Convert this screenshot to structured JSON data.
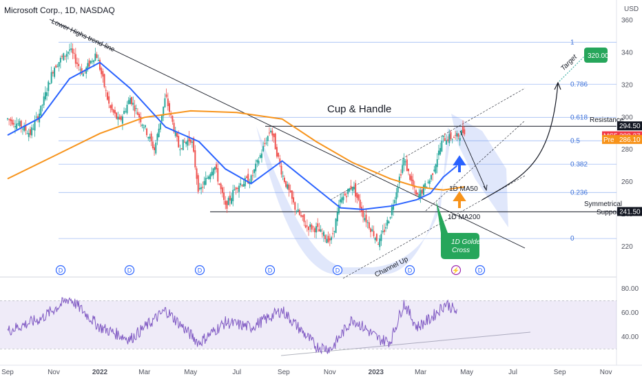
{
  "header": {
    "title": "Microsoft Corp., 1D, NASDAQ"
  },
  "chart_data": {
    "type": "line",
    "price_axis": {
      "currency": "USD",
      "ticks": [
        360,
        340,
        320,
        300,
        280,
        260,
        240,
        220
      ],
      "ylim": [
        202,
        362
      ]
    },
    "rsi_axis": {
      "ticks": [
        80,
        60,
        40
      ],
      "ylim": [
        25,
        85
      ]
    },
    "x_ticks": [
      "Sep",
      "Nov",
      "2022",
      "Mar",
      "May",
      "Jul",
      "Sep",
      "Nov",
      "2023",
      "Mar",
      "May",
      "Jul",
      "Sep",
      "Nov"
    ],
    "fib_levels": [
      {
        "label": "1",
        "value": 346.5
      },
      {
        "label": "0.786",
        "value": 320.5
      },
      {
        "label": "0.618",
        "value": 300.0
      },
      {
        "label": "0.5",
        "value": 285.5
      },
      {
        "label": "0.382",
        "value": 271.0
      },
      {
        "label": "0.236",
        "value": 253.5
      },
      {
        "label": "0",
        "value": 225.0
      }
    ],
    "price_labels": [
      {
        "label": "294.50",
        "value": 294.5,
        "color": "#131722"
      },
      {
        "label": "MSFT",
        "value": 288.37,
        "color": "#f23645",
        "price": "288.37"
      },
      {
        "label": "Pre",
        "value": 286.1,
        "color": "#f7931a",
        "price": "286.10"
      },
      {
        "label": "241.50",
        "value": 241.5,
        "color": "#131722"
      }
    ],
    "annotations": {
      "pattern": "Cup & Handle",
      "trendline": "Lower Highs trend-line",
      "resistance": "Resistance",
      "support_line1": "Symmetrical",
      "support_line2": "Support",
      "ma50": "1D MA50",
      "ma200": "1D MA200",
      "golden_cross_line1": "1D Golden",
      "golden_cross_line2": "Cross",
      "channel": "Channel Up",
      "target": "Target",
      "target_value": "320.00"
    },
    "event_markers": [
      "D",
      "D",
      "D",
      "D",
      "D",
      "D",
      "D",
      "D",
      "D",
      "D"
    ],
    "series": [
      {
        "color": "#131722",
        "x": [
          "2021-09-01",
          "2021-09-15",
          "2021-10-01",
          "2021-10-15",
          "2021-11-01",
          "2021-11-22",
          "2021-12-10",
          "2021-12-27",
          "2022-01-14",
          "2022-01-27",
          "2022-02-10",
          "2022-03-01",
          "2022-03-14",
          "2022-03-29",
          "2022-04-15",
          "2022-05-02",
          "2022-05-12",
          "2022-06-01",
          "2022-06-16",
          "2022-07-01",
          "2022-07-20",
          "2022-08-15",
          "2022-08-30",
          "2022-09-15",
          "2022-09-30",
          "2022-10-14",
          "2022-10-26",
          "2022-11-03",
          "2022-11-15",
          "2022-12-01",
          "2022-12-15",
          "2023-01-05",
          "2023-01-20",
          "2023-02-07",
          "2023-02-24",
          "2023-03-14",
          "2023-03-31",
          "2023-04-18",
          "2023-04-28"
        ],
        "values": [
          299,
          296,
          290,
          305,
          331,
          342,
          327,
          340,
          306,
          297,
          312,
          294,
          280,
          313,
          282,
          287,
          253,
          271,
          244,
          258,
          262,
          293,
          265,
          245,
          233,
          231,
          226,
          224,
          248,
          258,
          240,
          222,
          240,
          274,
          250,
          262,
          287,
          288,
          292
        ]
      },
      {
        "name": "1D MA50",
        "color": "#2962ff",
        "x": [
          "2021-09-01",
          "2021-10-15",
          "2021-11-22",
          "2022-01-01",
          "2022-02-10",
          "2022-03-29",
          "2022-05-12",
          "2022-06-16",
          "2022-07-20",
          "2022-08-30",
          "2022-10-14",
          "2022-11-15",
          "2022-12-15",
          "2023-01-20",
          "2023-02-24",
          "2023-03-14",
          "2023-03-31",
          "2023-04-18"
        ],
        "values": [
          289,
          300,
          324,
          334,
          318,
          294,
          285,
          268,
          259,
          273,
          256,
          244,
          243,
          245,
          249,
          253,
          263,
          270
        ]
      },
      {
        "name": "1D MA200",
        "color": "#f7931a",
        "x": [
          "2021-09-01",
          "2021-11-01",
          "2022-01-01",
          "2022-03-01",
          "2022-05-01",
          "2022-07-01",
          "2022-08-30",
          "2022-10-14",
          "2022-12-01",
          "2023-01-20",
          "2023-02-24",
          "2023-03-31",
          "2023-04-28"
        ],
        "values": [
          262,
          276,
          290,
          300,
          304,
          303,
          299,
          285,
          272,
          262,
          257,
          255,
          257
        ]
      }
    ],
    "rsi_series": {
      "color": "#7e57c2",
      "x": [
        "2021-09-01",
        "2021-10-15",
        "2021-11-22",
        "2022-01-01",
        "2022-02-10",
        "2022-03-29",
        "2022-05-12",
        "2022-06-16",
        "2022-07-20",
        "2022-08-30",
        "2022-10-14",
        "2022-11-03",
        "2022-12-01",
        "2023-01-05",
        "2023-01-20",
        "2023-02-07",
        "2023-02-24",
        "2023-03-14",
        "2023-04-04",
        "2023-04-18"
      ],
      "values": [
        45,
        55,
        72,
        48,
        38,
        62,
        35,
        52,
        48,
        62,
        32,
        30,
        55,
        38,
        36,
        68,
        48,
        55,
        68,
        60
      ]
    },
    "rsi_band": [
      30,
      70
    ]
  }
}
